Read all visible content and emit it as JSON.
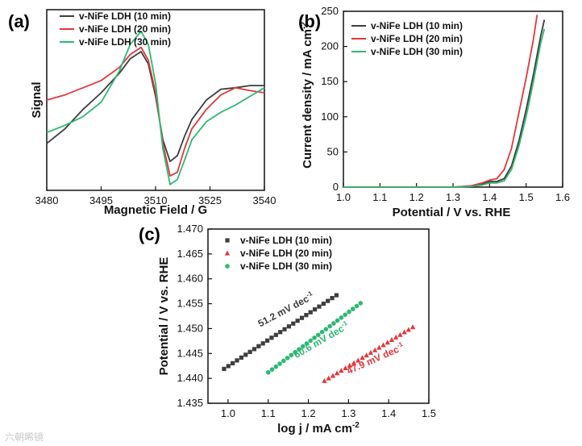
{
  "colors": {
    "black": "#3d3d3d",
    "red": "#e0373c",
    "green": "#2eb872",
    "axis": "#111111",
    "watermark": "#c9c9c9"
  },
  "watermark": "六朝晞镜",
  "chart_data": [
    {
      "id": "a",
      "panel_label": "(a)",
      "type": "line",
      "xlabel": "Magnetic Field / G",
      "ylabel": "Signal",
      "xlim": [
        3480,
        3540
      ],
      "ylim": [
        -1.2,
        1.3
      ],
      "xticks": [
        3480,
        3495,
        3510,
        3525,
        3540
      ],
      "xtick_labels": [
        "3480",
        "3495",
        "3510",
        "3525",
        "3540"
      ],
      "legend": [
        "v-NiFe LDH (10 min)",
        "v-NiFe LDH (20 min)",
        "v-NiFe LDH (30 min)"
      ],
      "series": [
        {
          "name": "v-NiFe LDH (10 min)",
          "color": "black",
          "x": [
            3480,
            3485,
            3490,
            3495,
            3500,
            3503,
            3506,
            3508,
            3510,
            3512,
            3514,
            3516,
            3518,
            3520,
            3524,
            3528,
            3532,
            3536,
            3540
          ],
          "y": [
            -0.55,
            -0.35,
            -0.08,
            0.15,
            0.42,
            0.62,
            0.72,
            0.55,
            0.1,
            -0.5,
            -0.8,
            -0.72,
            -0.45,
            -0.22,
            0.05,
            0.2,
            0.22,
            0.25,
            0.25
          ]
        },
        {
          "name": "v-NiFe LDH (20 min)",
          "color": "red",
          "x": [
            3480,
            3485,
            3490,
            3495,
            3500,
            3503,
            3506,
            3508,
            3510,
            3512,
            3514,
            3516,
            3518,
            3520,
            3524,
            3528,
            3532,
            3536,
            3540
          ],
          "y": [
            0.05,
            0.12,
            0.22,
            0.32,
            0.5,
            0.68,
            0.78,
            0.6,
            0.15,
            -0.55,
            -1.0,
            -0.95,
            -0.62,
            -0.35,
            -0.08,
            0.12,
            0.22,
            0.18,
            0.15
          ]
        },
        {
          "name": "v-NiFe LDH (30 min)",
          "color": "green",
          "x": [
            3480,
            3485,
            3490,
            3495,
            3500,
            3503,
            3506,
            3508,
            3510,
            3512,
            3514,
            3516,
            3518,
            3520,
            3524,
            3528,
            3532,
            3536,
            3540
          ],
          "y": [
            -0.4,
            -0.3,
            -0.18,
            0.02,
            0.45,
            0.82,
            1.0,
            0.82,
            0.28,
            -0.62,
            -1.12,
            -1.05,
            -0.78,
            -0.5,
            -0.25,
            -0.12,
            -0.02,
            0.1,
            0.22
          ]
        }
      ]
    },
    {
      "id": "b",
      "panel_label": "(b)",
      "type": "line",
      "xlabel": "Potential / V vs. RHE",
      "ylabel": "Current density / mA cm",
      "ylabel_sup": "-2",
      "xlim": [
        1.0,
        1.6
      ],
      "ylim": [
        0,
        250
      ],
      "xticks": [
        1.0,
        1.1,
        1.2,
        1.3,
        1.4,
        1.5,
        1.6
      ],
      "xtick_labels": [
        "1.0",
        "1.1",
        "1.2",
        "1.3",
        "1.4",
        "1.5",
        "1.6"
      ],
      "yticks": [
        0,
        50,
        100,
        150,
        200,
        250
      ],
      "ytick_labels": [
        "0",
        "50",
        "100",
        "150",
        "200",
        "250"
      ],
      "legend": [
        "v-NiFe LDH (10 min)",
        "v-NiFe LDH (20 min)",
        "v-NiFe LDH (30 min)"
      ],
      "series": [
        {
          "name": "v-NiFe LDH (10 min)",
          "color": "black",
          "x": [
            1.0,
            1.3,
            1.35,
            1.38,
            1.4,
            1.42,
            1.44,
            1.46,
            1.48,
            1.5,
            1.52,
            1.54,
            1.55
          ],
          "y": [
            0,
            0,
            1,
            4,
            8,
            8,
            12,
            30,
            65,
            110,
            160,
            215,
            238
          ]
        },
        {
          "name": "v-NiFe LDH (20 min)",
          "color": "red",
          "x": [
            1.0,
            1.3,
            1.35,
            1.38,
            1.4,
            1.42,
            1.44,
            1.46,
            1.48,
            1.5,
            1.52,
            1.53
          ],
          "y": [
            0,
            0,
            2,
            6,
            10,
            12,
            25,
            55,
            105,
            155,
            210,
            245
          ]
        },
        {
          "name": "v-NiFe LDH (30 min)",
          "color": "green",
          "x": [
            1.0,
            1.3,
            1.35,
            1.38,
            1.4,
            1.42,
            1.44,
            1.46,
            1.48,
            1.5,
            1.52,
            1.54,
            1.55
          ],
          "y": [
            0,
            0,
            1,
            3,
            6,
            6,
            9,
            25,
            58,
            100,
            150,
            205,
            225
          ]
        }
      ]
    },
    {
      "id": "c",
      "panel_label": "(c)",
      "type": "scatter",
      "xlabel": "log j / mA cm",
      "xlabel_sup": "-2",
      "ylabel": "Potential / V vs. RHE",
      "xlim": [
        0.95,
        1.5
      ],
      "ylim": [
        1.435,
        1.47
      ],
      "xticks": [
        1.0,
        1.1,
        1.2,
        1.3,
        1.4,
        1.5
      ],
      "xtick_labels": [
        "1.0",
        "1.1",
        "1.2",
        "1.3",
        "1.4",
        "1.5"
      ],
      "yticks": [
        1.435,
        1.44,
        1.445,
        1.45,
        1.455,
        1.46,
        1.465,
        1.47
      ],
      "ytick_labels": [
        "1.435",
        "1.440",
        "1.445",
        "1.450",
        "1.455",
        "1.460",
        "1.465",
        "1.470"
      ],
      "legend": [
        "v-NiFe LDH (10 min)",
        "v-NiFe LDH (20 min)",
        "v-NiFe LDH (30 min)"
      ],
      "series": [
        {
          "name": "v-NiFe LDH (10 min)",
          "color": "black",
          "marker": "square",
          "x_start": 0.99,
          "x_end": 1.27,
          "y_start": 1.4419,
          "y_end": 1.4567,
          "count": 27,
          "annotation": "51.2 mV dec",
          "annotation_sup": "-1",
          "annotation_at": [
            1.08,
            1.4503
          ],
          "annotation_angle": -28
        },
        {
          "name": "v-NiFe LDH (20 min)",
          "color": "red",
          "marker": "triangle",
          "x_start": 1.24,
          "x_end": 1.46,
          "y_start": 1.4395,
          "y_end": 1.4503,
          "count": 22,
          "annotation": "47.9 mV dec",
          "annotation_sup": "-1",
          "annotation_at": [
            1.3,
            1.4408
          ],
          "annotation_angle": -24
        },
        {
          "name": "v-NiFe LDH (30 min)",
          "color": "green",
          "marker": "circle",
          "x_start": 1.1,
          "x_end": 1.33,
          "y_start": 1.4412,
          "y_end": 1.4551,
          "count": 25,
          "annotation": "60.6 mV dec",
          "annotation_sup": "-1",
          "annotation_at": [
            1.17,
            1.444
          ],
          "annotation_angle": -30
        }
      ]
    }
  ]
}
